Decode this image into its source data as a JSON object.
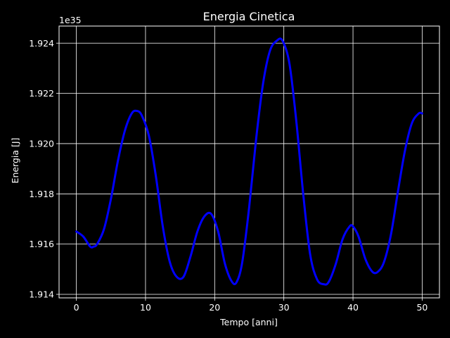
{
  "chart_data": {
    "type": "line",
    "title": "Energia Cinetica",
    "xlabel": "Tempo [anni]",
    "ylabel": "Energia [J]",
    "y_offset_label": "1e35",
    "xlim": [
      -2.5,
      52.5
    ],
    "ylim": [
      1.91386,
      1.92468
    ],
    "x_ticks": [
      0,
      10,
      20,
      30,
      40,
      50
    ],
    "x_tick_labels": [
      "0",
      "10",
      "20",
      "30",
      "40",
      "50"
    ],
    "y_ticks": [
      1.914,
      1.916,
      1.918,
      1.92,
      1.922,
      1.924
    ],
    "y_tick_labels": [
      "1.914",
      "1.916",
      "1.918",
      "1.920",
      "1.922",
      "1.924"
    ],
    "grid": true,
    "colors": {
      "background": "#000000",
      "foreground": "#ffffff",
      "line": "#0000ff"
    },
    "series": [
      {
        "x": [
          0,
          1,
          2,
          2.5,
          3,
          4,
          5,
          6,
          7,
          8,
          8.8,
          9.5,
          10.5,
          11.5,
          12.5,
          13.5,
          14.5,
          15.5,
          16.5,
          17.5,
          18.5,
          19.5,
          20.5,
          21.5,
          22.5,
          23.2,
          24,
          25,
          26,
          27,
          28,
          29,
          29.8,
          30.8,
          31.8,
          32.8,
          33.8,
          34.8,
          35.8,
          36.5,
          37.5,
          38.5,
          39.5,
          40,
          40.8,
          41.8,
          42.8,
          43.6,
          44.5,
          45.5,
          46.5,
          47.5,
          48.5,
          49.5,
          50
        ],
        "y": [
          1.9165,
          1.9163,
          1.9159,
          1.9159,
          1.916,
          1.9166,
          1.9178,
          1.9193,
          1.9205,
          1.9212,
          1.9213,
          1.9211,
          1.9203,
          1.9187,
          1.9167,
          1.9153,
          1.9147,
          1.9147,
          1.9155,
          1.9165,
          1.9171,
          1.9172,
          1.9165,
          1.9152,
          1.9145,
          1.9145,
          1.9153,
          1.9175,
          1.9202,
          1.9224,
          1.9237,
          1.9241,
          1.9241,
          1.9232,
          1.9209,
          1.918,
          1.9156,
          1.9146,
          1.9144,
          1.9145,
          1.9152,
          1.9162,
          1.9167,
          1.9167,
          1.9163,
          1.9154,
          1.9149,
          1.9149,
          1.9153,
          1.9164,
          1.9181,
          1.9197,
          1.9208,
          1.9212,
          1.9212
        ]
      }
    ]
  }
}
